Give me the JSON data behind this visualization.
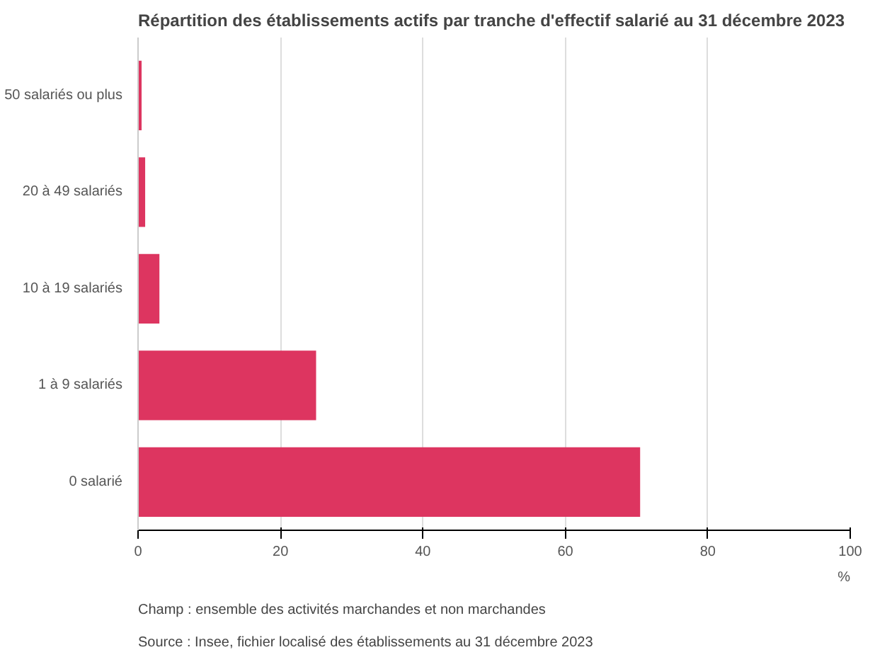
{
  "chart_data": {
    "type": "bar",
    "orientation": "horizontal",
    "title": "Répartition des établissements actifs par tranche d'effectif salarié au 31 décembre 2023",
    "categories": [
      "50 salariés ou plus",
      "20 à 49 salariés",
      "10 à 19 salariés",
      "1 à 9 salariés",
      "0 salarié"
    ],
    "series": [
      {
        "color": "#dd3560",
        "values": [
          0.5,
          1,
          3,
          25,
          70.5
        ]
      }
    ],
    "xlim": [
      0,
      100
    ],
    "xticks": [
      0,
      20,
      40,
      60,
      80,
      100
    ],
    "xlabel": "%",
    "grid": "x",
    "annotations": [
      "Champ : ensemble des activités marchandes et non marchandes",
      "Source : Insee, fichier localisé des établissements au 31 décembre 2023"
    ]
  }
}
